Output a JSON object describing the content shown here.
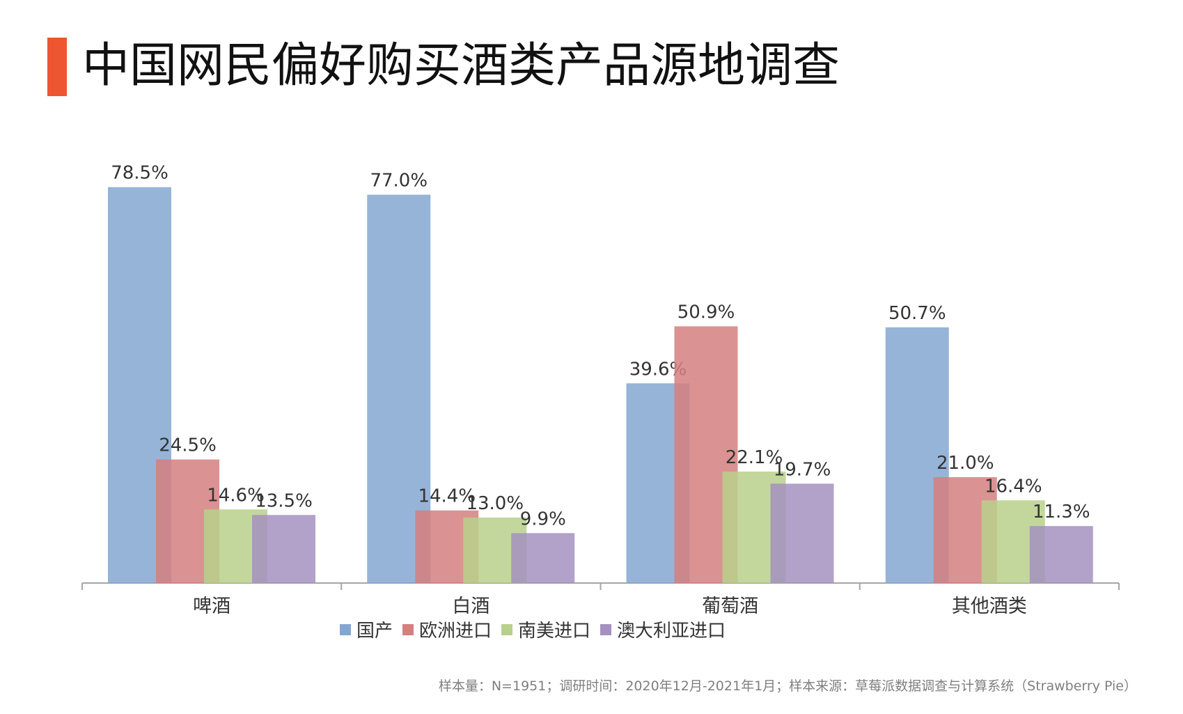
{
  "title": "中国网民偏好购买酒类产品源地调查",
  "accent_color": "#ed5630",
  "footer": "样本量：N=1951；调研时间：2020年12月-2021年1月；样本来源：草莓派数据调查与计算系统（Strawberry Pie）",
  "chart_data": {
    "type": "bar",
    "categories": [
      "啤酒",
      "白酒",
      "葡萄酒",
      "其他酒类"
    ],
    "series": [
      {
        "name": "国产",
        "color": "#84a7d1",
        "values": [
          78.5,
          77.0,
          39.6,
          50.7
        ],
        "labels": [
          "78.5%",
          "77.0%",
          "39.6%",
          "50.7%"
        ]
      },
      {
        "name": "欧洲进口",
        "color": "#d57f7f",
        "values": [
          24.5,
          14.4,
          50.9,
          21.0
        ],
        "labels": [
          "24.5%",
          "14.4%",
          "50.9%",
          "21.0%"
        ]
      },
      {
        "name": "南美进口",
        "color": "#b8d08b",
        "values": [
          14.6,
          13.0,
          22.1,
          16.4
        ],
        "labels": [
          "14.6%",
          "13.0%",
          "22.1%",
          "16.4%"
        ]
      },
      {
        "name": "澳大利亚进口",
        "color": "#a491c0",
        "values": [
          13.5,
          9.9,
          19.7,
          11.3
        ],
        "labels": [
          "13.5%",
          "9.9%",
          "19.7%",
          "11.3%"
        ]
      }
    ],
    "ylim": [
      0,
      100
    ],
    "grid": false,
    "legend": "bottom",
    "xlabel": "",
    "ylabel": ""
  }
}
